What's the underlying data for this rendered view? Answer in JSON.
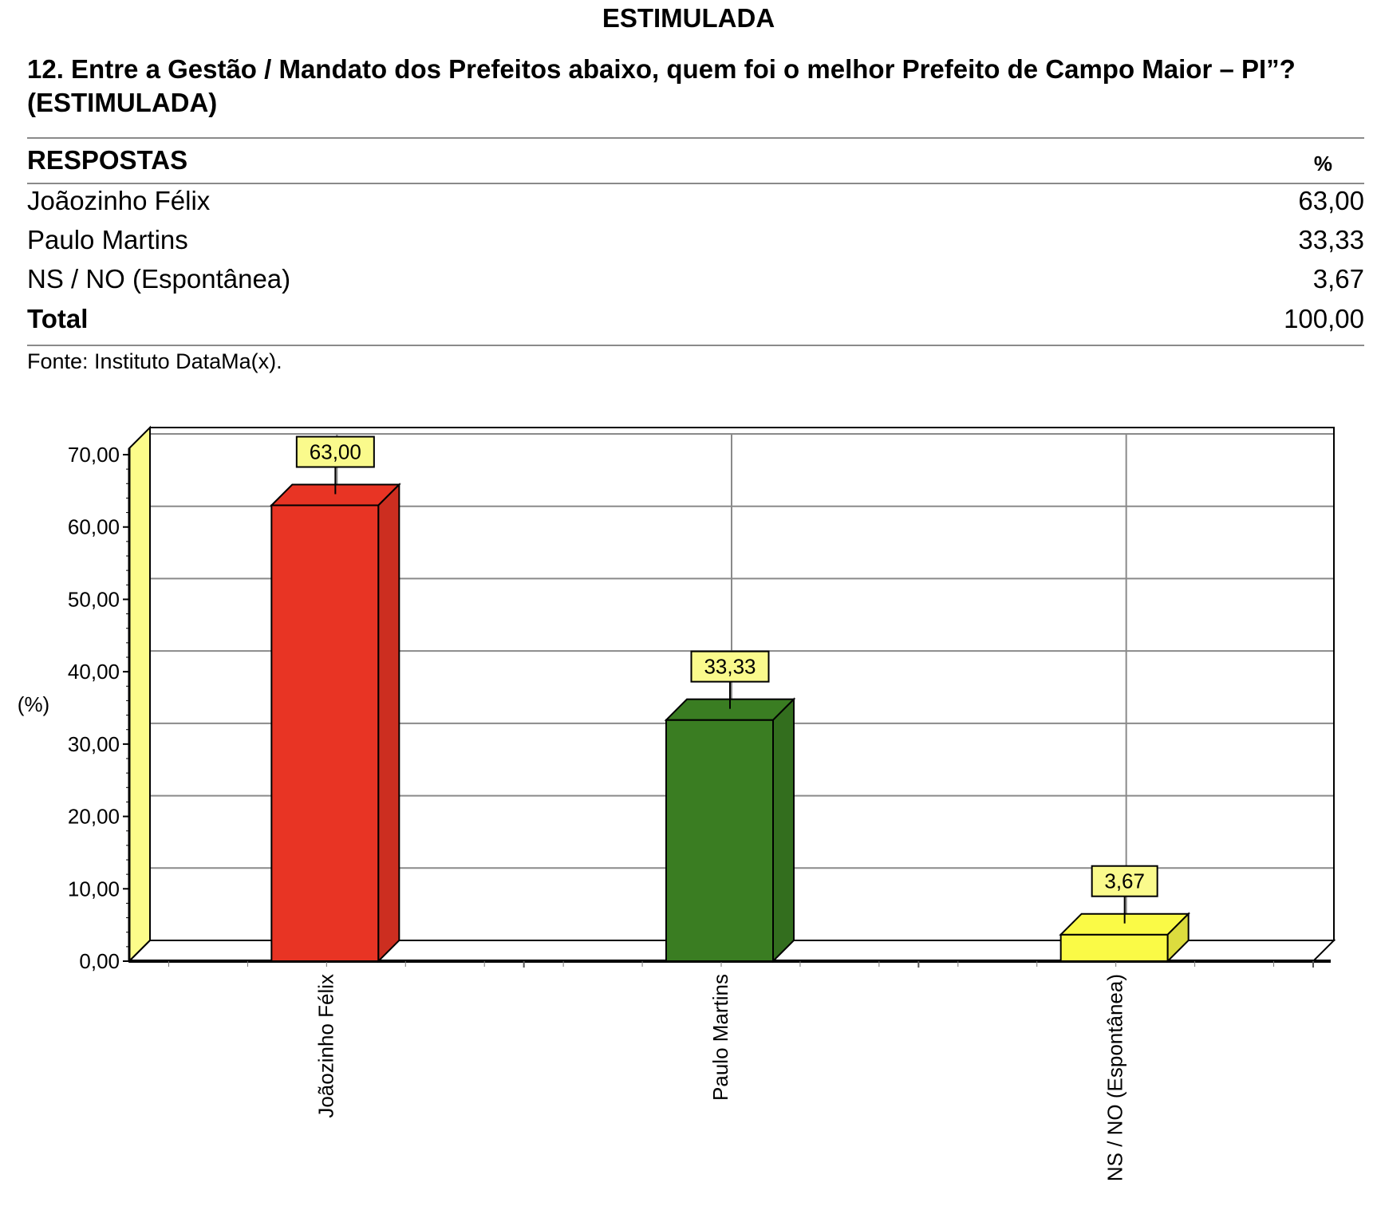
{
  "page": {
    "heading": "ESTIMULADA",
    "question": "12. Entre a Gestão / Mandato dos Prefeitos abaixo, quem foi o melhor Prefeito de Campo Maior – PI”? (ESTIMULADA)",
    "source": "Fonte: Instituto DataMa(x)."
  },
  "table": {
    "header": {
      "label": "RESPOSTAS",
      "value": "%"
    },
    "rows": [
      {
        "label": "Joãozinho Félix",
        "value": "63,00"
      },
      {
        "label": "Paulo Martins",
        "value": "33,33"
      },
      {
        "label": "NS / NO (Espontânea)",
        "value": "3,67"
      }
    ],
    "total": {
      "label": "Total",
      "value": "100,00"
    }
  },
  "chart_data": {
    "type": "bar",
    "categories": [
      "Joãozinho Félix",
      "Paulo Martins",
      "NS / NO (Espontânea)"
    ],
    "values": [
      63.0,
      33.33,
      3.67
    ],
    "data_labels": [
      "63,00",
      "33,33",
      "3,67"
    ],
    "colors": [
      "#e83424",
      "#3a7d22",
      "#fafa46"
    ],
    "ylabel": "(%)",
    "ylim": [
      0,
      70
    ],
    "yticks": [
      "0,00",
      "10,00",
      "20,00",
      "30,00",
      "40,00",
      "50,00",
      "60,00",
      "70,00"
    ],
    "grid": true,
    "label_bg": "#fafa8c",
    "wall_color": "#fcfc8a"
  }
}
